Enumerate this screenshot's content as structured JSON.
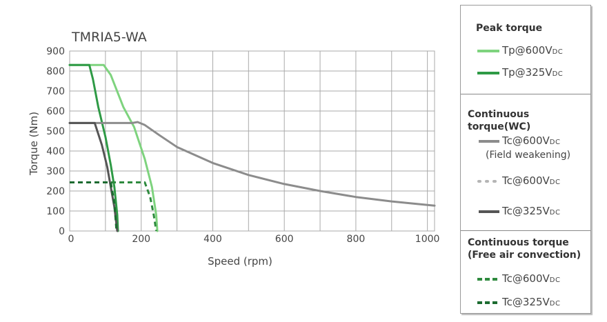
{
  "chart_data": {
    "type": "line",
    "title": "TMRIA5-WA",
    "xlabel": "Speed (rpm)",
    "ylabel": "Torque (Nm)",
    "xlim": [
      0,
      1020
    ],
    "ylim": [
      0,
      900
    ],
    "xticks": [
      0,
      200,
      400,
      600,
      800,
      1000
    ],
    "yticks": [
      0,
      100,
      200,
      300,
      400,
      500,
      600,
      700,
      800,
      900
    ],
    "grid": true,
    "legend_position": "right",
    "series": [
      {
        "key": "tp600",
        "color": "#7ed37e",
        "style": "solid",
        "points": [
          [
            0,
            830
          ],
          [
            95,
            830
          ],
          [
            115,
            780
          ],
          [
            150,
            620
          ],
          [
            180,
            520
          ],
          [
            210,
            360
          ],
          [
            230,
            220
          ],
          [
            242,
            80
          ],
          [
            245,
            0
          ]
        ]
      },
      {
        "key": "tp325",
        "color": "#2e9a45",
        "style": "solid",
        "points": [
          [
            0,
            830
          ],
          [
            55,
            830
          ],
          [
            65,
            760
          ],
          [
            80,
            620
          ],
          [
            100,
            470
          ],
          [
            115,
            330
          ],
          [
            125,
            220
          ],
          [
            133,
            80
          ],
          [
            135,
            0
          ]
        ]
      },
      {
        "key": "tc600fw",
        "color": "#8c8c8c",
        "style": "solid",
        "points": [
          [
            0,
            540
          ],
          [
            175,
            540
          ],
          [
            190,
            545
          ],
          [
            210,
            530
          ],
          [
            250,
            480
          ],
          [
            300,
            420
          ],
          [
            400,
            340
          ],
          [
            500,
            280
          ],
          [
            600,
            235
          ],
          [
            700,
            200
          ],
          [
            800,
            170
          ],
          [
            900,
            148
          ],
          [
            1000,
            130
          ],
          [
            1020,
            127
          ]
        ]
      },
      {
        "key": "tc325",
        "color": "#555555",
        "style": "solid",
        "points": [
          [
            0,
            540
          ],
          [
            70,
            540
          ],
          [
            90,
            430
          ],
          [
            105,
            320
          ],
          [
            115,
            220
          ],
          [
            125,
            120
          ],
          [
            133,
            0
          ]
        ]
      },
      {
        "key": "fa600",
        "color": "#2e8a3e",
        "style": "dashed",
        "points": [
          [
            0,
            243
          ],
          [
            210,
            243
          ],
          [
            225,
            170
          ],
          [
            235,
            80
          ],
          [
            242,
            0
          ]
        ]
      },
      {
        "key": "fa325",
        "color": "#1c6b30",
        "style": "dashed",
        "points": [
          [
            0,
            243
          ],
          [
            115,
            243
          ],
          [
            125,
            140
          ],
          [
            131,
            0
          ]
        ]
      }
    ]
  },
  "legend": {
    "peak": {
      "heading": "Peak torque",
      "items": [
        {
          "label": "Tp@600V",
          "sub": "DC"
        },
        {
          "label": "Tp@325V",
          "sub": "DC"
        }
      ]
    },
    "wc": {
      "heading": "Continuous torque(WC)",
      "items": [
        {
          "label": "Tc@600V",
          "sub": "DC",
          "note": "(Field weakening)"
        },
        {
          "label": "Tc@600V",
          "sub": "DC"
        },
        {
          "label": "Tc@325V",
          "sub": "DC"
        }
      ]
    },
    "fa": {
      "heading": "Continuous torque",
      "heading2": "(Free air convection)",
      "items": [
        {
          "label": "Tc@600V",
          "sub": "DC"
        },
        {
          "label": "Tc@325V",
          "sub": "DC"
        }
      ]
    }
  },
  "colors": {
    "grid": "#a9a9a9",
    "tp600": "#7ed37e",
    "tp325": "#2e9a45",
    "tc600fw": "#8c8c8c",
    "tc600": "#b5b5b5",
    "tc325": "#555555",
    "fa600": "#2e8a3e",
    "fa325": "#1c6b30"
  }
}
